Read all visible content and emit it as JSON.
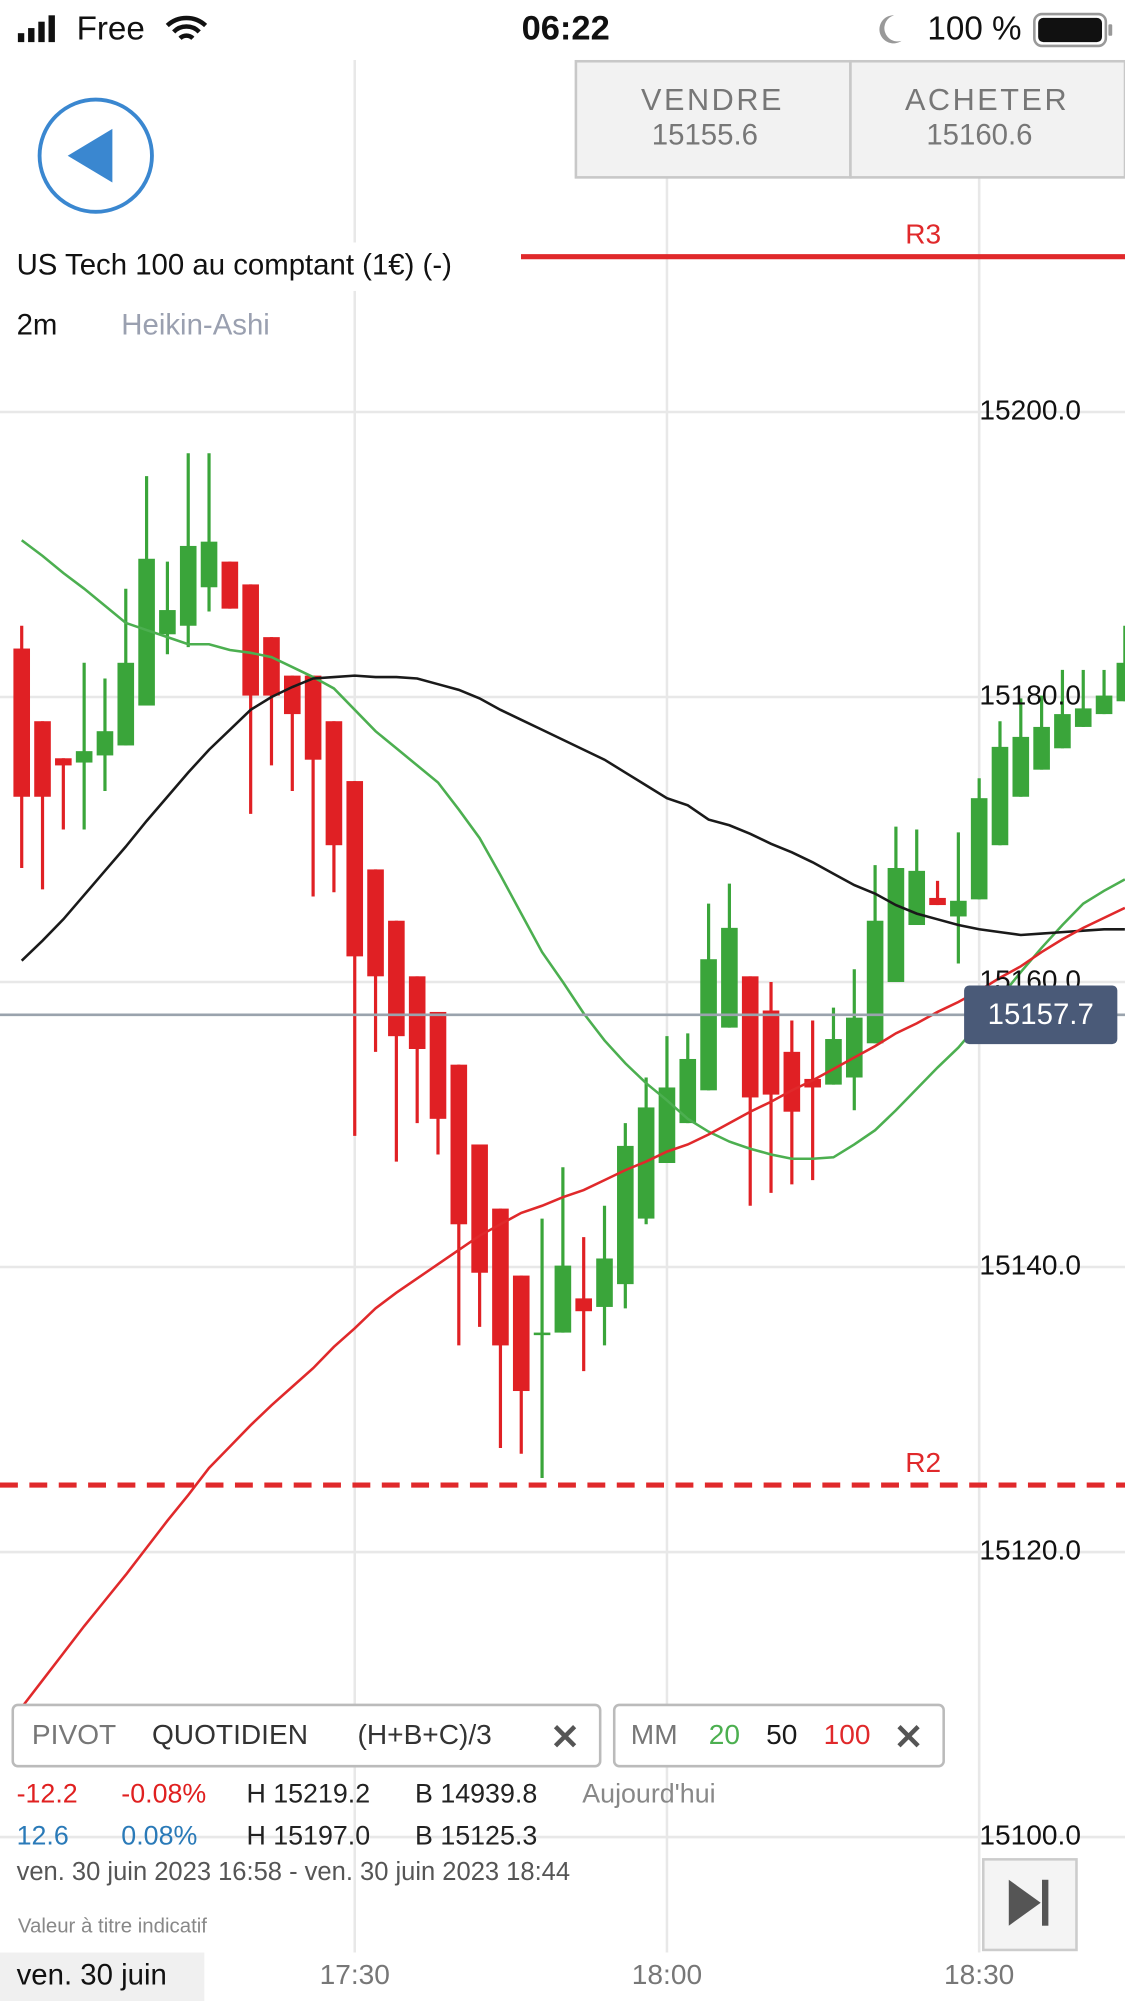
{
  "status_bar": {
    "carrier": "Free",
    "time": "06:22",
    "battery": "100 %"
  },
  "quote": {
    "sell_label": "VENDRE",
    "sell_price": "15155.6",
    "buy_label": "ACHETER",
    "buy_price": "15160.6"
  },
  "chart_data": {
    "type": "candlestick",
    "title": "US Tech 100 au comptant (1€) (-)",
    "interval": "2m",
    "style": "Heikin-Ashi",
    "date_label": "ven. 30 juin",
    "categories": [
      null,
      null,
      null,
      null,
      null,
      null,
      null,
      null,
      null,
      null,
      null,
      null,
      null,
      null,
      null,
      null,
      "17:30",
      null,
      null,
      null,
      null,
      null,
      null,
      null,
      null,
      null,
      null,
      null,
      null,
      null,
      null,
      "18:00",
      null,
      null,
      null,
      null,
      null,
      null,
      null,
      null,
      null,
      null,
      null,
      null,
      null,
      null,
      "18:30",
      null,
      null,
      null,
      null,
      null,
      null,
      null
    ],
    "candles": {
      "open": [
        15183.4,
        15178.3,
        15175.7,
        15175.4,
        15175.9,
        15176.6,
        15179.4,
        15184.4,
        15185.0,
        15187.7,
        15189.5,
        15187.9,
        15184.2,
        15181.5,
        15181.5,
        15178.3,
        15174.1,
        15167.9,
        15164.3,
        15160.4,
        15157.9,
        15154.2,
        15148.6,
        15144.1,
        15139.4,
        15135.4,
        15135.4,
        15137.8,
        15137.2,
        15138.8,
        15143.4,
        15147.3,
        15150.1,
        15152.4,
        15156.8,
        15160.4,
        15158.0,
        15155.1,
        15153.2,
        15152.8,
        15153.3,
        15155.7,
        15160.0,
        15164.0,
        15165.9,
        15164.6,
        15165.8,
        15169.6,
        15173.0,
        15174.9,
        15176.4,
        15177.9,
        15178.8,
        15179.7
      ],
      "high": [
        15185.0,
        15178.3,
        15175.7,
        15182.4,
        15181.3,
        15187.6,
        15195.5,
        15189.5,
        15197.1,
        15197.1,
        15189.5,
        15187.9,
        15184.2,
        15181.5,
        15181.5,
        15178.3,
        15174.1,
        15167.9,
        15164.3,
        15160.4,
        15157.9,
        15154.2,
        15148.6,
        15144.1,
        15139.4,
        15143.4,
        15147.0,
        15142.1,
        15144.3,
        15150.1,
        15153.3,
        15156.2,
        15156.4,
        15165.5,
        15166.9,
        15160.4,
        15160.0,
        15157.3,
        15157.3,
        15158.2,
        15160.9,
        15168.2,
        15170.9,
        15170.7,
        15167.1,
        15170.5,
        15174.3,
        15178.3,
        15179.9,
        15180.1,
        15181.9,
        15181.9,
        15181.9,
        15185.0
      ],
      "low": [
        15168.0,
        15166.5,
        15170.7,
        15170.7,
        15173.4,
        15176.6,
        15179.4,
        15183.0,
        15183.5,
        15186.0,
        15186.2,
        15171.8,
        15175.2,
        15173.4,
        15166.0,
        15166.3,
        15149.2,
        15155.1,
        15147.4,
        15150.1,
        15147.9,
        15134.5,
        15135.8,
        15127.3,
        15126.9,
        15125.2,
        15135.4,
        15132.7,
        15134.5,
        15137.1,
        15143.0,
        15147.3,
        15150.1,
        15152.4,
        15156.8,
        15144.3,
        15145.2,
        15145.8,
        15146.1,
        15152.8,
        15151.0,
        15155.7,
        15160.0,
        15164.0,
        15165.4,
        15161.3,
        15165.8,
        15169.6,
        15173.0,
        15174.9,
        15176.4,
        15177.9,
        15178.8,
        15179.7
      ],
      "close": [
        15173.0,
        15173.0,
        15175.2,
        15176.2,
        15177.6,
        15182.4,
        15189.7,
        15186.1,
        15190.6,
        15190.9,
        15186.2,
        15180.1,
        15180.1,
        15178.8,
        15175.6,
        15169.6,
        15161.8,
        15160.4,
        15156.2,
        15155.3,
        15150.4,
        15143.0,
        15139.6,
        15134.5,
        15131.3,
        15135.4,
        15140.1,
        15136.9,
        15140.6,
        15148.5,
        15151.2,
        15152.6,
        15154.6,
        15161.6,
        15163.8,
        15151.9,
        15152.1,
        15150.9,
        15152.6,
        15156.0,
        15157.5,
        15164.3,
        15168.0,
        15167.8,
        15165.4,
        15165.7,
        15172.9,
        15176.5,
        15177.2,
        15177.9,
        15178.8,
        15179.2,
        15180.1,
        15182.4
      ]
    },
    "up_color": "#3aa53a",
    "down_color": "#e02024",
    "series": [
      {
        "name": "20",
        "color": "#4caf50",
        "values": [
          15191.0,
          15189.9,
          15188.7,
          15187.6,
          15186.4,
          15185.2,
          15184.7,
          15184.2,
          15183.7,
          15183.7,
          15183.3,
          15183.1,
          15182.8,
          15182.1,
          15181.4,
          15180.6,
          15179.1,
          15177.6,
          15176.4,
          15175.2,
          15174.0,
          15172.1,
          15170.1,
          15167.5,
          15164.8,
          15162.1,
          15160.0,
          15157.8,
          15155.9,
          15154.3,
          15152.9,
          15151.7,
          15150.4,
          15149.5,
          15148.8,
          15148.3,
          15147.9,
          15147.6,
          15147.6,
          15147.7,
          15148.6,
          15149.6,
          15151.0,
          15152.5,
          15154.0,
          15155.4,
          15157.1,
          15158.9,
          15160.7,
          15162.4,
          15164.0,
          15165.5,
          15166.4,
          15167.2
        ]
      },
      {
        "name": "50",
        "color": "#1a1a1a",
        "values": [
          15161.5,
          15162.9,
          15164.4,
          15166.1,
          15167.8,
          15169.5,
          15171.3,
          15173.0,
          15174.7,
          15176.3,
          15177.7,
          15179.1,
          15180.0,
          15180.7,
          15181.3,
          15181.4,
          15181.5,
          15181.4,
          15181.4,
          15181.3,
          15180.9,
          15180.5,
          15179.9,
          15179.1,
          15178.4,
          15177.7,
          15177.0,
          15176.3,
          15175.6,
          15174.7,
          15173.8,
          15172.9,
          15172.4,
          15171.4,
          15171.0,
          15170.4,
          15169.7,
          15169.1,
          15168.4,
          15167.6,
          15166.8,
          15166.2,
          15165.4,
          15164.8,
          15164.4,
          15164.0,
          15163.7,
          15163.5,
          15163.3,
          15163.4,
          15163.5,
          15163.6,
          15163.7,
          15163.7
        ]
      },
      {
        "name": "100",
        "color": "#e0292b",
        "values": [
          15109.1,
          15111.0,
          15112.9,
          15114.8,
          15116.6,
          15118.4,
          15120.3,
          15122.2,
          15124.0,
          15125.9,
          15127.4,
          15128.9,
          15130.3,
          15131.6,
          15132.9,
          15134.4,
          15135.7,
          15137.1,
          15138.2,
          15139.2,
          15140.2,
          15141.2,
          15142.2,
          15143.0,
          15143.8,
          15144.3,
          15144.9,
          15145.4,
          15146.1,
          15146.8,
          15147.4,
          15148.1,
          15148.6,
          15149.3,
          15150.1,
          15150.9,
          15151.6,
          15152.4,
          15153.1,
          15153.9,
          15154.7,
          15155.5,
          15156.4,
          15157.1,
          15157.9,
          15158.6,
          15159.4,
          15160.3,
          15161.1,
          15162.1,
          15163.0,
          15163.8,
          15164.5,
          15165.2
        ]
      }
    ],
    "levels": [
      {
        "name": "R3",
        "value": 15210.9,
        "color": "#e0292b",
        "dashed": false
      },
      {
        "name": "R2",
        "value": 15124.7,
        "color": "#e0292b",
        "dashed": true
      }
    ],
    "current_price": 15157.7,
    "ylim": [
      15091.9,
      15224.7
    ],
    "yticks": [
      {
        "value": 15100,
        "label": "15100.0"
      },
      {
        "value": 15120,
        "label": "15120.0"
      },
      {
        "value": 15140,
        "label": "15140.0"
      },
      {
        "value": 15160,
        "label": "15160.0"
      },
      {
        "value": 15180,
        "label": "15180.0"
      },
      {
        "value": 15200,
        "label": "15200.0"
      }
    ],
    "grid": true
  },
  "indicators": {
    "pivot": [
      "PIVOT",
      "QUOTIDIEN",
      "(H+B+C)/3"
    ],
    "ma_label": "MM"
  },
  "stats": {
    "rows": [
      [
        "-12.2",
        "-0.08%",
        "H 15219.2",
        "B 14939.8",
        "Aujourd'hui"
      ],
      [
        "12.6",
        "0.08%",
        "H 15197.0",
        "B 15125.3"
      ]
    ],
    "range": "ven. 30 juin 2023 16:58 - ven. 30 juin 2023 18:44",
    "disclaimer": "Valeur à titre indicatif"
  }
}
